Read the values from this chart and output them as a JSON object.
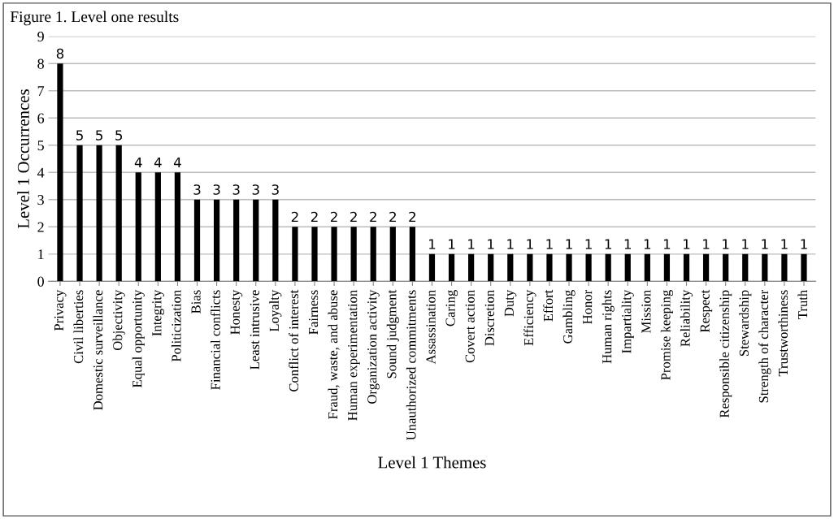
{
  "chart_data": {
    "type": "bar",
    "title": "Figure 1. Level one results",
    "xlabel": "Level 1 Themes",
    "ylabel": "Level 1 Occurrences",
    "categories": [
      "Privacy",
      "Civil liberties",
      "Domestic surveillance",
      "Objectivity",
      "Equal opportunity",
      "Integrity",
      "Politicization",
      "Bias",
      "Financial conflicts",
      "Honesty",
      "Least intrusive",
      "Loyalty",
      "Conflict of interest",
      "Fairness",
      "Fraud, waste, and abuse",
      "Human experimentation",
      "Organization activity",
      "Sound judgment",
      "Unauthorized commitments",
      "Assassination",
      "Caring",
      "Covert action",
      "Discretion",
      "Duty",
      "Efficiency",
      "Effort",
      "Gambling",
      "Honor",
      "Human rights",
      "Impartiality",
      "Mission",
      "Promise keeping",
      "Reliability",
      "Respect",
      "Responsible citizenship",
      "Stewardship",
      "Strength of character",
      "Trustworthiness",
      "Truth"
    ],
    "values": [
      8,
      5,
      5,
      5,
      4,
      4,
      4,
      3,
      3,
      3,
      3,
      3,
      2,
      2,
      2,
      2,
      2,
      2,
      2,
      1,
      1,
      1,
      1,
      1,
      1,
      1,
      1,
      1,
      1,
      1,
      1,
      1,
      1,
      1,
      1,
      1,
      1,
      1,
      1
    ],
    "color": "#000000",
    "ylim": [
      0,
      9
    ],
    "yticks": [
      0,
      1,
      2,
      3,
      4,
      5,
      6,
      7,
      8,
      9
    ],
    "grid": "y",
    "data_labels": true
  }
}
